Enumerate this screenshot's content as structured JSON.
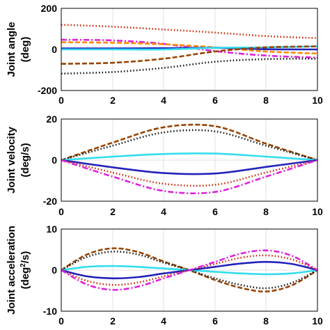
{
  "chart_data": [
    {
      "type": "line",
      "ylabel": [
        "Joint angle",
        "(deg)"
      ],
      "xlim": [
        0,
        10
      ],
      "ylim": [
        -200,
        200
      ],
      "xticks": [
        "0",
        "2",
        "4",
        "6",
        "8",
        "10"
      ],
      "yticks": [
        "200",
        "0",
        "-200"
      ],
      "grid": true,
      "series": [
        {
          "color": "#cc2200",
          "style": "dot",
          "x": [
            0,
            2,
            4,
            6,
            8,
            10
          ],
          "values": [
            120,
            111,
            97,
            82,
            65,
            55
          ]
        },
        {
          "color": "#dd22dd",
          "style": "dashdot",
          "x": [
            0,
            2,
            4,
            6,
            8,
            10
          ],
          "values": [
            47,
            44,
            27,
            -8,
            -30,
            -40
          ]
        },
        {
          "color": "#ff8800",
          "style": "dash",
          "x": [
            0,
            2,
            4,
            6,
            8,
            10
          ],
          "values": [
            35,
            33,
            25,
            10,
            -10,
            -20
          ]
        },
        {
          "color": "#2222bb",
          "style": "solid",
          "x": [
            0,
            2,
            4,
            6,
            8,
            10
          ],
          "values": [
            5,
            5,
            6,
            8,
            1,
            0
          ]
        },
        {
          "color": "#33ddee",
          "style": "solid",
          "x": [
            0,
            2,
            4,
            6,
            8,
            10
          ],
          "values": [
            0,
            0,
            0,
            8,
            10,
            15
          ]
        },
        {
          "color": "#994400",
          "style": "dash",
          "x": [
            0,
            2,
            4,
            6,
            8,
            10
          ],
          "values": [
            -70,
            -65,
            -45,
            -10,
            10,
            15
          ]
        },
        {
          "color": "#111111",
          "style": "dot",
          "x": [
            0,
            2,
            4,
            6,
            8,
            10
          ],
          "values": [
            -118,
            -110,
            -90,
            -60,
            -47,
            -45
          ]
        }
      ]
    },
    {
      "type": "line",
      "ylabel": [
        "Joint velocity",
        "(deg/s)"
      ],
      "xlim": [
        0,
        10
      ],
      "ylim": [
        -20,
        20
      ],
      "xticks": [
        "0",
        "2",
        "4",
        "6",
        "8",
        "10"
      ],
      "yticks": [
        "20",
        "0",
        "-20"
      ],
      "grid": true,
      "series": [
        {
          "color": "#994400",
          "style": "dash",
          "x": [
            0,
            2,
            4,
            6,
            8,
            10
          ],
          "values": [
            0,
            8.5,
            16,
            16.5,
            8,
            0
          ]
        },
        {
          "color": "#111111",
          "style": "dot",
          "x": [
            0,
            2,
            4,
            6,
            8,
            10
          ],
          "values": [
            0,
            7,
            13.5,
            14,
            7,
            0
          ]
        },
        {
          "color": "#33ddee",
          "style": "solid",
          "x": [
            0,
            2,
            4,
            6,
            8,
            10
          ],
          "values": [
            0,
            1.7,
            3,
            3.2,
            1.7,
            0
          ]
        },
        {
          "color": "#2222bb",
          "style": "solid",
          "x": [
            0,
            2,
            4,
            6,
            8,
            10
          ],
          "values": [
            0,
            -3.5,
            -6.3,
            -6.5,
            -3.3,
            0
          ]
        },
        {
          "color": "#cc2200",
          "style": "dot",
          "x": [
            0,
            2,
            4,
            6,
            8,
            10
          ],
          "values": [
            0,
            -6,
            -11.5,
            -12,
            -6,
            0
          ]
        },
        {
          "color": "#dd22dd",
          "style": "dashdot",
          "x": [
            0,
            2,
            4,
            6,
            8,
            10
          ],
          "values": [
            0,
            -8,
            -15,
            -15.5,
            -8,
            0
          ]
        }
      ]
    },
    {
      "type": "line",
      "ylabel": [
        "Joint acceleration",
        "(deg",
        "2",
        "/s)"
      ],
      "xlim": [
        0,
        10
      ],
      "ylim": [
        -10,
        10
      ],
      "xticks": [
        "0",
        "2",
        "4",
        "6",
        "8",
        "10"
      ],
      "yticks": [
        "10",
        "0",
        "-10"
      ],
      "grid": true,
      "series": [
        {
          "color": "#994400",
          "style": "dash",
          "x": [
            0,
            1,
            2,
            3,
            4,
            5,
            6,
            7,
            8,
            9,
            10
          ],
          "values": [
            0,
            3.8,
            5.3,
            4.4,
            2.1,
            0,
            -2.4,
            -4.3,
            -5.2,
            -3.7,
            0
          ]
        },
        {
          "color": "#111111",
          "style": "dot",
          "x": [
            0,
            1,
            2,
            3,
            4,
            5,
            6,
            7,
            8,
            9,
            10
          ],
          "values": [
            0,
            3.2,
            4.5,
            3.8,
            1.8,
            0,
            -2,
            -3.6,
            -4.4,
            -3.1,
            0
          ]
        },
        {
          "color": "#33ddee",
          "style": "solid",
          "x": [
            0,
            1,
            2,
            3,
            4,
            5,
            6,
            7,
            8,
            9,
            10
          ],
          "values": [
            0,
            0.8,
            1,
            0.8,
            0.4,
            0,
            -0.4,
            -0.8,
            -1,
            -0.8,
            0
          ]
        },
        {
          "color": "#2222bb",
          "style": "solid",
          "x": [
            0,
            1,
            2,
            3,
            4,
            5,
            6,
            7,
            8,
            9,
            10
          ],
          "values": [
            0,
            -1.5,
            -2,
            -1.7,
            -0.8,
            0,
            0.8,
            1.6,
            2,
            1.5,
            0
          ]
        },
        {
          "color": "#cc2200",
          "style": "dot",
          "x": [
            0,
            1,
            2,
            3,
            4,
            5,
            6,
            7,
            8,
            9,
            10
          ],
          "values": [
            0,
            -2.6,
            -3.6,
            -3,
            -1.5,
            0,
            1.5,
            3,
            3.6,
            2.6,
            0
          ]
        },
        {
          "color": "#dd22dd",
          "style": "dashdot",
          "x": [
            0,
            1,
            2,
            3,
            4,
            5,
            6,
            7,
            8,
            9,
            10
          ],
          "values": [
            0,
            -3.5,
            -4.8,
            -4,
            -2,
            0,
            2,
            4,
            4.8,
            3.5,
            0
          ]
        }
      ]
    }
  ]
}
